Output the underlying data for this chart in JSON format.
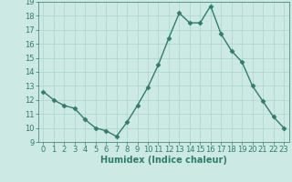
{
  "x": [
    0,
    1,
    2,
    3,
    4,
    5,
    6,
    7,
    8,
    9,
    10,
    11,
    12,
    13,
    14,
    15,
    16,
    17,
    18,
    19,
    20,
    21,
    22,
    23
  ],
  "y": [
    12.6,
    12.0,
    11.6,
    11.4,
    10.6,
    10.0,
    9.8,
    9.4,
    10.4,
    11.6,
    12.9,
    14.5,
    16.4,
    18.2,
    17.5,
    17.5,
    18.7,
    16.7,
    15.5,
    14.7,
    13.0,
    11.9,
    10.8,
    10.0
  ],
  "line_color": "#2e7d6e",
  "marker": "D",
  "marker_size": 2.5,
  "bg_color": "#cce9e4",
  "grid_color": "#aad4ce",
  "xlabel": "Humidex (Indice chaleur)",
  "ylim": [
    9,
    19
  ],
  "xlim": [
    -0.5,
    23.5
  ],
  "yticks": [
    9,
    10,
    11,
    12,
    13,
    14,
    15,
    16,
    17,
    18,
    19
  ],
  "xticks": [
    0,
    1,
    2,
    3,
    4,
    5,
    6,
    7,
    8,
    9,
    10,
    11,
    12,
    13,
    14,
    15,
    16,
    17,
    18,
    19,
    20,
    21,
    22,
    23
  ],
  "xlabel_fontsize": 7,
  "tick_fontsize": 6,
  "line_width": 1.0,
  "spine_color": "#2e7d6e"
}
